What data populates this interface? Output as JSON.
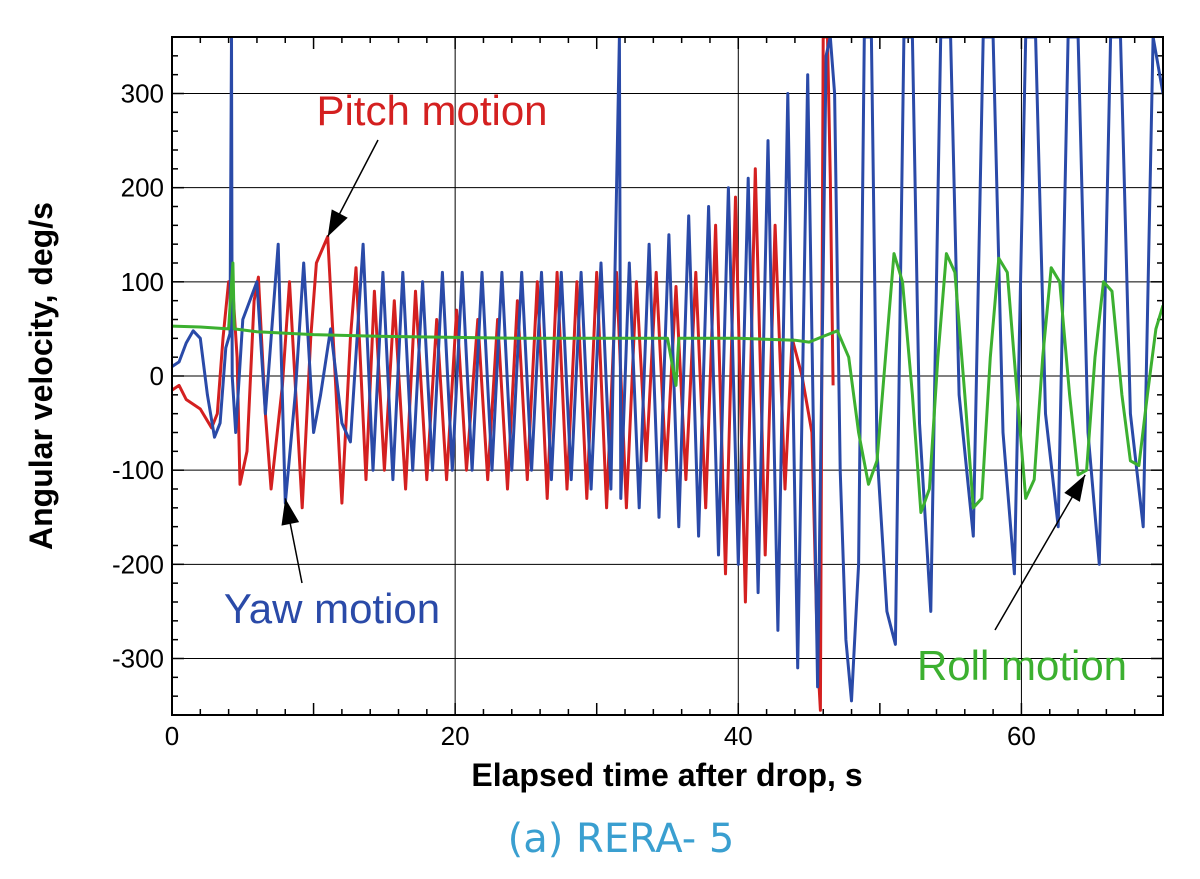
{
  "chart_data": {
    "type": "line",
    "caption": "(a) RERA- 5",
    "xlabel": "Elapsed time after drop, s",
    "ylabel": "Angular velocity, deg/s",
    "xlim": [
      0,
      70
    ],
    "ylim": [
      -360,
      360
    ],
    "x_ticks": [
      0,
      20,
      40,
      60
    ],
    "y_ticks": [
      -300,
      -200,
      -100,
      0,
      100,
      200,
      300
    ],
    "grid": true,
    "colors": {
      "pitch": "#d42020",
      "yaw": "#2a4aa8",
      "roll": "#3cb030",
      "caption": "#3a9fd0"
    },
    "annotations": [
      {
        "text": "Pitch motion",
        "color": "#d42020",
        "arrow_to": [
          11,
          148
        ]
      },
      {
        "text": "Yaw motion",
        "color": "#2a4aa8",
        "arrow_to": [
          8,
          -130
        ]
      },
      {
        "text": "Roll motion",
        "color": "#3cb030",
        "arrow_to": [
          64.5,
          -105
        ]
      }
    ],
    "series": [
      {
        "name": "Pitch motion",
        "color": "#d42020",
        "points": [
          [
            0,
            -15
          ],
          [
            0.5,
            -10
          ],
          [
            1,
            -25
          ],
          [
            2,
            -35
          ],
          [
            2.8,
            -55
          ],
          [
            3.2,
            -40
          ],
          [
            3.6,
            40
          ],
          [
            4,
            100
          ],
          [
            4.3,
            90
          ],
          [
            4.6,
            20
          ],
          [
            4.8,
            -115
          ],
          [
            5.3,
            -80
          ],
          [
            5.8,
            80
          ],
          [
            6.1,
            105
          ],
          [
            6.6,
            -40
          ],
          [
            7,
            -120
          ],
          [
            7.8,
            -10
          ],
          [
            8.3,
            100
          ],
          [
            9.2,
            -140
          ],
          [
            9.8,
            40
          ],
          [
            10.2,
            120
          ],
          [
            11,
            148
          ],
          [
            11.6,
            -20
          ],
          [
            12,
            -135
          ],
          [
            12.6,
            40
          ],
          [
            13,
            115
          ],
          [
            13.7,
            -110
          ],
          [
            14.3,
            90
          ],
          [
            15,
            -100
          ],
          [
            15.7,
            80
          ],
          [
            16.5,
            -120
          ],
          [
            17.2,
            90
          ],
          [
            18,
            -110
          ],
          [
            18.7,
            60
          ],
          [
            19.4,
            -110
          ],
          [
            20.1,
            70
          ],
          [
            20.8,
            -100
          ],
          [
            21.6,
            60
          ],
          [
            22.3,
            -110
          ],
          [
            23,
            60
          ],
          [
            23.7,
            -120
          ],
          [
            24.4,
            80
          ],
          [
            25.1,
            -110
          ],
          [
            25.8,
            100
          ],
          [
            26.5,
            -130
          ],
          [
            27.2,
            110
          ],
          [
            27.9,
            -120
          ],
          [
            28.6,
            100
          ],
          [
            29.3,
            -130
          ],
          [
            30,
            110
          ],
          [
            30.7,
            -140
          ],
          [
            31.4,
            110
          ],
          [
            32.1,
            -140
          ],
          [
            32.8,
            100
          ],
          [
            33.5,
            -90
          ],
          [
            34.2,
            110
          ],
          [
            34.9,
            -100
          ],
          [
            35.6,
            95
          ],
          [
            36.3,
            -110
          ],
          [
            37,
            110
          ],
          [
            37.7,
            -140
          ],
          [
            38.4,
            160
          ],
          [
            39.1,
            -210
          ],
          [
            39.8,
            190
          ],
          [
            40.5,
            -240
          ],
          [
            41.2,
            220
          ],
          [
            41.9,
            -190
          ],
          [
            42.6,
            160
          ],
          [
            43.3,
            -120
          ],
          [
            43.8,
            40
          ],
          [
            44.5,
            0
          ],
          [
            45.2,
            -60
          ],
          [
            45.6,
            -300
          ],
          [
            45.8,
            -355
          ],
          [
            46.0,
            360
          ],
          [
            46.3,
            360
          ],
          [
            46.5,
            210
          ],
          [
            46.7,
            -10
          ]
        ]
      },
      {
        "name": "Yaw motion",
        "color": "#2a4aa8",
        "points": [
          [
            0,
            10
          ],
          [
            0.5,
            15
          ],
          [
            1,
            35
          ],
          [
            1.5,
            48
          ],
          [
            2,
            40
          ],
          [
            2.5,
            -20
          ],
          [
            3,
            -65
          ],
          [
            3.4,
            -50
          ],
          [
            3.8,
            30
          ],
          [
            4.1,
            45
          ],
          [
            4.2,
            360
          ],
          [
            4.25,
            0
          ],
          [
            4.5,
            -60
          ],
          [
            5,
            60
          ],
          [
            6,
            100
          ],
          [
            6.6,
            -40
          ],
          [
            7.5,
            140
          ],
          [
            8,
            -135
          ],
          [
            8.7,
            -20
          ],
          [
            9.3,
            120
          ],
          [
            10,
            -60
          ],
          [
            10.5,
            -20
          ],
          [
            11.2,
            50
          ],
          [
            12,
            -50
          ],
          [
            12.6,
            -70
          ],
          [
            13.5,
            140
          ],
          [
            14.2,
            -100
          ],
          [
            14.9,
            110
          ],
          [
            15.6,
            -110
          ],
          [
            16.3,
            110
          ],
          [
            17,
            -100
          ],
          [
            17.7,
            100
          ],
          [
            18.4,
            -100
          ],
          [
            19.1,
            110
          ],
          [
            19.8,
            -100
          ],
          [
            20.5,
            110
          ],
          [
            21.2,
            -100
          ],
          [
            21.9,
            110
          ],
          [
            22.6,
            -100
          ],
          [
            23.3,
            110
          ],
          [
            24,
            -100
          ],
          [
            24.7,
            110
          ],
          [
            25.4,
            -100
          ],
          [
            26.1,
            110
          ],
          [
            26.8,
            -110
          ],
          [
            27.5,
            110
          ],
          [
            28.2,
            -110
          ],
          [
            28.9,
            110
          ],
          [
            29.6,
            -120
          ],
          [
            30.3,
            120
          ],
          [
            31,
            -120
          ],
          [
            31.6,
            360
          ],
          [
            31.7,
            -130
          ],
          [
            32.3,
            120
          ],
          [
            33,
            -140
          ],
          [
            33.7,
            140
          ],
          [
            34.4,
            -150
          ],
          [
            35.1,
            150
          ],
          [
            35.8,
            -160
          ],
          [
            36.5,
            170
          ],
          [
            37.2,
            -170
          ],
          [
            37.9,
            180
          ],
          [
            38.6,
            -190
          ],
          [
            39.3,
            200
          ],
          [
            40,
            -200
          ],
          [
            40.7,
            210
          ],
          [
            41.4,
            -230
          ],
          [
            42.1,
            250
          ],
          [
            42.8,
            -270
          ],
          [
            43.5,
            300
          ],
          [
            44.2,
            -310
          ],
          [
            44.9,
            320
          ],
          [
            45.6,
            -330
          ],
          [
            46.2,
            340
          ],
          [
            46.5,
            360
          ],
          [
            46.8,
            300
          ],
          [
            47.2,
            -100
          ],
          [
            47.6,
            -280
          ],
          [
            48,
            -345
          ],
          [
            48.5,
            -200
          ],
          [
            48.9,
            360
          ],
          [
            49.4,
            360
          ],
          [
            49.8,
            -80
          ],
          [
            50.5,
            -250
          ],
          [
            51.1,
            -285
          ],
          [
            51.7,
            360
          ],
          [
            52.3,
            360
          ],
          [
            52.8,
            -50
          ],
          [
            53.6,
            -250
          ],
          [
            54.3,
            360
          ],
          [
            55,
            360
          ],
          [
            55.6,
            -20
          ],
          [
            56.6,
            -170
          ],
          [
            57.3,
            360
          ],
          [
            58,
            360
          ],
          [
            58.7,
            -60
          ],
          [
            59.5,
            -210
          ],
          [
            60.3,
            360
          ],
          [
            61,
            360
          ],
          [
            61.7,
            -40
          ],
          [
            62.6,
            -160
          ],
          [
            63.3,
            360
          ],
          [
            64,
            360
          ],
          [
            64.7,
            -60
          ],
          [
            65.5,
            -200
          ],
          [
            66.3,
            360
          ],
          [
            67,
            360
          ],
          [
            67.7,
            -40
          ],
          [
            68.6,
            -160
          ],
          [
            69.3,
            360
          ],
          [
            70,
            300
          ]
        ]
      },
      {
        "name": "Roll motion",
        "color": "#3cb030",
        "points": [
          [
            0,
            53
          ],
          [
            2,
            52
          ],
          [
            4,
            50
          ],
          [
            4.3,
            120
          ],
          [
            4.4,
            50
          ],
          [
            6,
            47
          ],
          [
            10,
            44
          ],
          [
            15,
            42
          ],
          [
            20,
            41
          ],
          [
            25,
            40
          ],
          [
            30,
            40
          ],
          [
            35,
            40
          ],
          [
            35.6,
            -10
          ],
          [
            35.8,
            40
          ],
          [
            40,
            40
          ],
          [
            44,
            38
          ],
          [
            45,
            36
          ],
          [
            46,
            42
          ],
          [
            47,
            48
          ],
          [
            47.8,
            20
          ],
          [
            48.5,
            -60
          ],
          [
            49.2,
            -115
          ],
          [
            49.8,
            -90
          ],
          [
            50.4,
            20
          ],
          [
            51,
            130
          ],
          [
            51.6,
            100
          ],
          [
            52.3,
            -20
          ],
          [
            52.9,
            -145
          ],
          [
            53.5,
            -120
          ],
          [
            54.1,
            20
          ],
          [
            54.7,
            130
          ],
          [
            55.3,
            110
          ],
          [
            56,
            -20
          ],
          [
            56.6,
            -140
          ],
          [
            57.2,
            -130
          ],
          [
            57.8,
            20
          ],
          [
            58.4,
            125
          ],
          [
            59,
            110
          ],
          [
            59.7,
            -20
          ],
          [
            60.3,
            -130
          ],
          [
            60.9,
            -110
          ],
          [
            61.5,
            20
          ],
          [
            62.1,
            115
          ],
          [
            62.7,
            100
          ],
          [
            63.4,
            -20
          ],
          [
            64,
            -105
          ],
          [
            64.6,
            -100
          ],
          [
            65.2,
            20
          ],
          [
            65.8,
            100
          ],
          [
            66.4,
            90
          ],
          [
            67.1,
            -20
          ],
          [
            67.7,
            -90
          ],
          [
            68.3,
            -95
          ],
          [
            68.9,
            -20
          ],
          [
            69.5,
            50
          ],
          [
            70,
            75
          ]
        ]
      }
    ]
  }
}
